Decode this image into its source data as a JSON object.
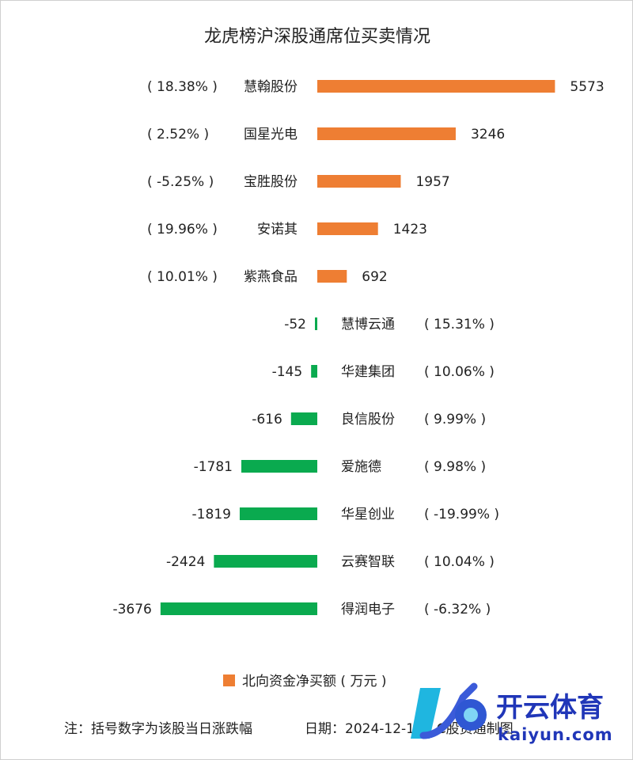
{
  "chart_data": {
    "type": "bar",
    "orientation": "horizontal",
    "title": "龙虎榜沪深股通席位买卖情况",
    "categories": [
      "慧翰股份",
      "国星光电",
      "宝胜股份",
      "安诺其",
      "紫燕食品",
      "慧博云通",
      "华建集团",
      "良信股份",
      "爱施德",
      "华星创业",
      "云赛智联",
      "得润电子"
    ],
    "changes": [
      "( 18.38% )",
      "( 2.52% )",
      "( -5.25% )",
      "( 19.96% )",
      "( 10.01% )",
      "( 15.31% )",
      "( 10.06% )",
      "( 9.99% )",
      "( 9.98% )",
      "( -19.99% )",
      "( 10.04% )",
      "( -6.32% )"
    ],
    "series": [
      {
        "name": "北向资金净买额 ( 万元 )",
        "values": [
          5573,
          3246,
          1957,
          1423,
          692,
          -52,
          -145,
          -616,
          -1781,
          -1819,
          -2424,
          -3676
        ]
      }
    ],
    "value_labels": [
      "5573",
      "3246",
      "1957",
      "1423",
      "692",
      "-52",
      "-145",
      "-616",
      "-1781",
      "-1819",
      "-2424",
      "-3676"
    ],
    "colors": {
      "positive": "#ee7e33",
      "negative": "#0aaa4f",
      "text": "#222222"
    },
    "legend_position": "bottom-center",
    "grid": false
  },
  "footer": {
    "note": "注：括号数字为该股当日涨跌幅",
    "date": "日期：2024-12-13，C股资通制图"
  },
  "watermark": {
    "brand": "开云体育",
    "site": "kaiyun.com"
  }
}
